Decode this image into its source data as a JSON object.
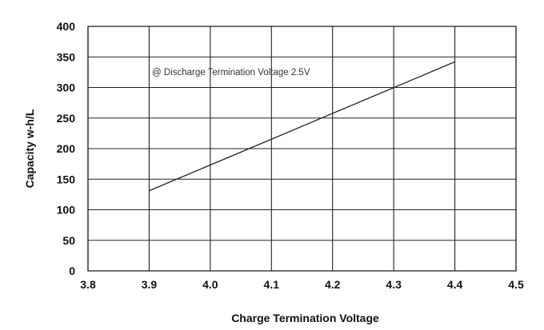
{
  "chart_data": {
    "type": "line",
    "title": "",
    "xlabel": "Charge Termination Voltage",
    "ylabel": "Capacity w-h/L",
    "xlim": [
      3.8,
      4.5
    ],
    "ylim": [
      0,
      400
    ],
    "xticks": [
      "3.8",
      "3.9",
      "4.0",
      "4.1",
      "4.2",
      "4.3",
      "4.4",
      "4.5"
    ],
    "yticks": [
      "0",
      "50",
      "100",
      "150",
      "200",
      "250",
      "300",
      "350",
      "400"
    ],
    "grid": true,
    "annotation": "@ Discharge Termination Voltage 2.5V",
    "series": [
      {
        "x": [
          3.9,
          4.4
        ],
        "y": [
          131,
          342
        ]
      }
    ],
    "colors": {
      "line": "#222222",
      "grid": "#222222"
    }
  }
}
